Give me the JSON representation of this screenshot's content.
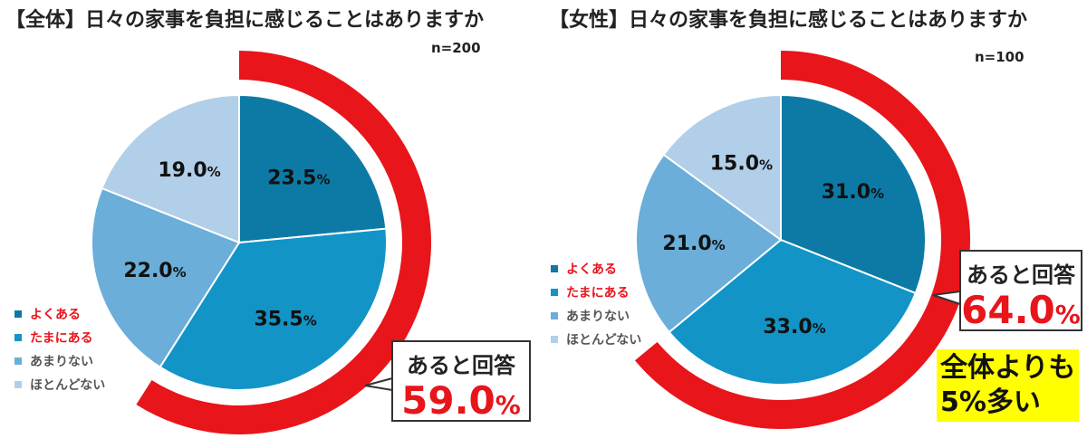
{
  "colors": {
    "often": "#0d7aa6",
    "sometimes": "#1294c7",
    "rarely": "#6aaed9",
    "never": "#b1cfe8",
    "accent": "#e8151b",
    "highlight": "#ffff00"
  },
  "legend_colors": [
    "#0d7aa6",
    "#1294c7",
    "#6aaed9",
    "#b1cfe8"
  ],
  "legend_text_colors": [
    "#e8151b",
    "#e8151b",
    "#555555",
    "#555555"
  ],
  "chart_data": [
    {
      "type": "pie",
      "title": "【全体】日々の家事を負担に感じることはありますか",
      "n_label": "n=200",
      "categories": [
        "よくある",
        "たまにある",
        "あまりない",
        "ほとんどない"
      ],
      "values": [
        23.5,
        35.5,
        22.0,
        19.0
      ],
      "value_labels": [
        "23.5",
        "35.5",
        "22.0",
        "19.0"
      ],
      "unit": "%",
      "arc_fraction": 0.59,
      "callout": {
        "label": "あると回答",
        "value": "59.0",
        "unit": "%"
      }
    },
    {
      "type": "pie",
      "title": "【女性】日々の家事を負担に感じることはありますか",
      "n_label": "n=100",
      "categories": [
        "よくある",
        "たまにある",
        "あまりない",
        "ほとんどない"
      ],
      "values": [
        31.0,
        33.0,
        21.0,
        15.0
      ],
      "value_labels": [
        "31.0",
        "33.0",
        "21.0",
        "15.0"
      ],
      "unit": "%",
      "arc_fraction": 0.64,
      "callout": {
        "label": "あると回答",
        "value": "64.0",
        "unit": "%"
      },
      "highlight_lines": [
        "全体よりも",
        "5%多い"
      ]
    }
  ]
}
